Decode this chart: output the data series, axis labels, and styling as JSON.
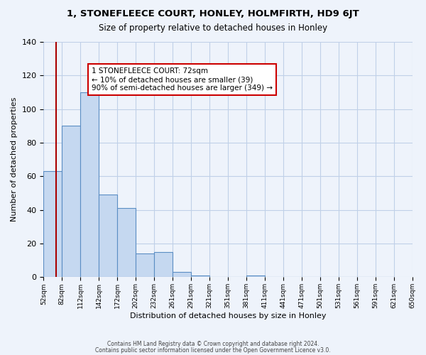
{
  "title": "1, STONEFLEECE COURT, HONLEY, HOLMFIRTH, HD9 6JT",
  "subtitle": "Size of property relative to detached houses in Honley",
  "xlabel": "Distribution of detached houses by size in Honley",
  "ylabel": "Number of detached properties",
  "bar_values": [
    63,
    90,
    110,
    49,
    41,
    14,
    15,
    3,
    1,
    0,
    0,
    1,
    0,
    0,
    0,
    0,
    0,
    0,
    0
  ],
  "bin_edges": [
    52,
    82,
    112,
    142,
    172,
    202,
    232,
    261,
    291,
    321,
    351,
    381,
    411,
    441,
    471,
    501,
    531,
    561,
    591,
    650
  ],
  "tick_labels": [
    "52sqm",
    "82sqm",
    "112sqm",
    "142sqm",
    "172sqm",
    "202sqm",
    "232sqm",
    "261sqm",
    "291sqm",
    "321sqm",
    "351sqm",
    "381sqm",
    "411sqm",
    "441sqm",
    "471sqm",
    "501sqm",
    "531sqm",
    "561sqm",
    "591sqm",
    "621sqm",
    "650sqm"
  ],
  "bar_color": "#c5d8f0",
  "bar_edge_color": "#5b8ec4",
  "red_line_x": 72,
  "ylim": [
    0,
    140
  ],
  "yticks": [
    0,
    20,
    40,
    60,
    80,
    100,
    120,
    140
  ],
  "annotation_title": "1 STONEFLEECE COURT: 72sqm",
  "annotation_line1": "← 10% of detached houses are smaller (39)",
  "annotation_line2": "90% of semi-detached houses are larger (349) →",
  "annotation_box_color": "#ffffff",
  "annotation_box_edge": "#cc0000",
  "grid_color": "#c0d0e8",
  "bg_color": "#eef3fb",
  "footer1": "Contains HM Land Registry data © Crown copyright and database right 2024.",
  "footer2": "Contains public sector information licensed under the Open Government Licence v3.0."
}
